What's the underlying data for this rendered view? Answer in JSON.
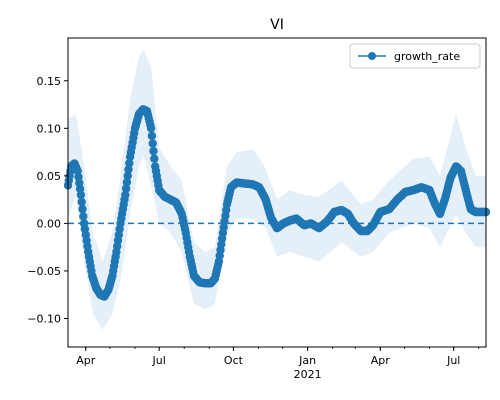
{
  "chart_data": {
    "type": "line",
    "title": "VI",
    "xlabel": "",
    "ylabel": "",
    "x_range": [
      "2020-03-10",
      "2021-08-10"
    ],
    "ylim": [
      -0.13,
      0.195
    ],
    "y_ticks": [
      -0.1,
      -0.05,
      0.0,
      0.05,
      0.1,
      0.15
    ],
    "y_tick_labels": [
      "−0.10",
      "−0.05",
      "0.00",
      "0.05",
      "0.10",
      "0.15"
    ],
    "x_ticks": [
      {
        "date": "2020-04-01",
        "label": "Apr"
      },
      {
        "date": "2020-07-01",
        "label": "Jul"
      },
      {
        "date": "2020-10-01",
        "label": "Oct"
      },
      {
        "date": "2021-01-01",
        "label": "Jan"
      },
      {
        "date": "2021-04-01",
        "label": "Apr"
      },
      {
        "date": "2021-07-01",
        "label": "Jul"
      }
    ],
    "year_label": {
      "date": "2021-01-01",
      "label": "2021"
    },
    "grid": false,
    "legend": {
      "placement": "top-right",
      "entries": [
        "growth_rate"
      ]
    },
    "reference_line": {
      "y": 0.0,
      "style": "dashed"
    },
    "colors": {
      "line": "#1f77b4",
      "band": "#c6dbef"
    },
    "series": [
      {
        "name": "growth_rate",
        "points": [
          [
            "2020-03-10",
            0.04
          ],
          [
            "2020-03-14",
            0.06
          ],
          [
            "2020-03-18",
            0.063
          ],
          [
            "2020-03-22",
            0.055
          ],
          [
            "2020-03-26",
            0.03
          ],
          [
            "2020-03-30",
            0.0
          ],
          [
            "2020-04-04",
            -0.03
          ],
          [
            "2020-04-09",
            -0.055
          ],
          [
            "2020-04-14",
            -0.068
          ],
          [
            "2020-04-19",
            -0.075
          ],
          [
            "2020-04-24",
            -0.077
          ],
          [
            "2020-04-29",
            -0.07
          ],
          [
            "2020-05-04",
            -0.055
          ],
          [
            "2020-05-09",
            -0.03
          ],
          [
            "2020-05-14",
            0.0
          ],
          [
            "2020-05-20",
            0.03
          ],
          [
            "2020-05-26",
            0.07
          ],
          [
            "2020-06-01",
            0.1
          ],
          [
            "2020-06-06",
            0.115
          ],
          [
            "2020-06-11",
            0.12
          ],
          [
            "2020-06-16",
            0.118
          ],
          [
            "2020-06-21",
            0.1
          ],
          [
            "2020-06-26",
            0.06
          ],
          [
            "2020-07-01",
            0.035
          ],
          [
            "2020-07-08",
            0.028
          ],
          [
            "2020-07-15",
            0.025
          ],
          [
            "2020-07-22",
            0.022
          ],
          [
            "2020-07-29",
            0.01
          ],
          [
            "2020-08-03",
            -0.01
          ],
          [
            "2020-08-08",
            -0.035
          ],
          [
            "2020-08-13",
            -0.055
          ],
          [
            "2020-08-20",
            -0.062
          ],
          [
            "2020-08-27",
            -0.063
          ],
          [
            "2020-09-03",
            -0.063
          ],
          [
            "2020-09-08",
            -0.058
          ],
          [
            "2020-09-13",
            -0.04
          ],
          [
            "2020-09-18",
            -0.01
          ],
          [
            "2020-09-23",
            0.02
          ],
          [
            "2020-09-28",
            0.038
          ],
          [
            "2020-10-05",
            0.043
          ],
          [
            "2020-10-15",
            0.042
          ],
          [
            "2020-10-25",
            0.041
          ],
          [
            "2020-11-02",
            0.038
          ],
          [
            "2020-11-10",
            0.025
          ],
          [
            "2020-11-17",
            0.005
          ],
          [
            "2020-11-24",
            -0.005
          ],
          [
            "2020-12-02",
            0.0
          ],
          [
            "2020-12-10",
            0.003
          ],
          [
            "2020-12-18",
            0.005
          ],
          [
            "2020-12-28",
            -0.002
          ],
          [
            "2021-01-05",
            0.0
          ],
          [
            "2021-01-15",
            -0.005
          ],
          [
            "2021-01-25",
            0.002
          ],
          [
            "2021-02-03",
            0.012
          ],
          [
            "2021-02-12",
            0.014
          ],
          [
            "2021-02-20",
            0.01
          ],
          [
            "2021-02-27",
            0.0
          ],
          [
            "2021-03-08",
            -0.008
          ],
          [
            "2021-03-16",
            -0.008
          ],
          [
            "2021-03-23",
            -0.002
          ],
          [
            "2021-04-01",
            0.012
          ],
          [
            "2021-04-12",
            0.015
          ],
          [
            "2021-04-22",
            0.025
          ],
          [
            "2021-05-02",
            0.033
          ],
          [
            "2021-05-12",
            0.035
          ],
          [
            "2021-05-22",
            0.038
          ],
          [
            "2021-06-01",
            0.035
          ],
          [
            "2021-06-08",
            0.02
          ],
          [
            "2021-06-14",
            0.01
          ],
          [
            "2021-06-20",
            0.025
          ],
          [
            "2021-06-27",
            0.048
          ],
          [
            "2021-07-04",
            0.06
          ],
          [
            "2021-07-10",
            0.055
          ],
          [
            "2021-07-16",
            0.035
          ],
          [
            "2021-07-22",
            0.015
          ],
          [
            "2021-07-28",
            0.012
          ],
          [
            "2021-08-10",
            0.012
          ]
        ],
        "band": [
          [
            "2020-03-10",
            0.005,
            0.11
          ],
          [
            "2020-03-20",
            0.03,
            0.115
          ],
          [
            "2020-03-30",
            -0.04,
            0.06
          ],
          [
            "2020-04-10",
            -0.095,
            -0.01
          ],
          [
            "2020-04-22",
            -0.112,
            -0.04
          ],
          [
            "2020-05-04",
            -0.095,
            -0.01
          ],
          [
            "2020-05-14",
            -0.06,
            0.05
          ],
          [
            "2020-05-26",
            0.01,
            0.13
          ],
          [
            "2020-06-06",
            0.06,
            0.175
          ],
          [
            "2020-06-12",
            0.07,
            0.182
          ],
          [
            "2020-06-21",
            0.04,
            0.165
          ],
          [
            "2020-07-01",
            0.0,
            0.08
          ],
          [
            "2020-07-15",
            -0.01,
            0.06
          ],
          [
            "2020-07-29",
            -0.03,
            0.045
          ],
          [
            "2020-08-13",
            -0.085,
            -0.02
          ],
          [
            "2020-08-27",
            -0.09,
            -0.03
          ],
          [
            "2020-09-08",
            -0.085,
            -0.025
          ],
          [
            "2020-09-23",
            -0.01,
            0.06
          ],
          [
            "2020-10-05",
            0.005,
            0.075
          ],
          [
            "2020-10-25",
            0.005,
            0.078
          ],
          [
            "2020-11-10",
            -0.005,
            0.058
          ],
          [
            "2020-11-24",
            -0.035,
            0.025
          ],
          [
            "2020-12-10",
            -0.03,
            0.035
          ],
          [
            "2020-12-28",
            -0.035,
            0.03
          ],
          [
            "2021-01-15",
            -0.04,
            0.028
          ],
          [
            "2021-02-12",
            -0.02,
            0.045
          ],
          [
            "2021-03-08",
            -0.035,
            0.02
          ],
          [
            "2021-03-23",
            -0.03,
            0.025
          ],
          [
            "2021-04-12",
            -0.01,
            0.045
          ],
          [
            "2021-05-12",
            0.0,
            0.068
          ],
          [
            "2021-06-01",
            -0.005,
            0.07
          ],
          [
            "2021-06-14",
            -0.025,
            0.05
          ],
          [
            "2021-07-04",
            0.01,
            0.115
          ],
          [
            "2021-07-16",
            -0.01,
            0.08
          ],
          [
            "2021-07-28",
            -0.025,
            0.05
          ],
          [
            "2021-08-10",
            -0.025,
            0.05
          ]
        ]
      }
    ]
  }
}
